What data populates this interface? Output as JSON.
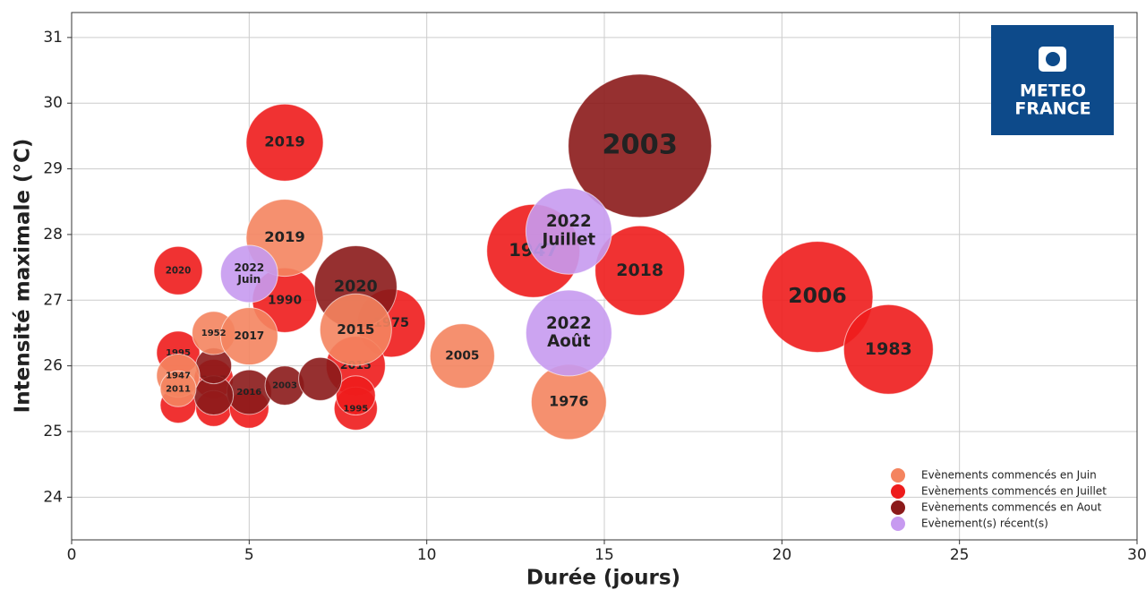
{
  "chart_data": {
    "type": "bubble",
    "xlabel": "Durée (jours)",
    "ylabel": "Intensité maximale (°C)",
    "xlim": [
      0,
      30
    ],
    "xticks": [
      0,
      5,
      10,
      15,
      20,
      25,
      30
    ],
    "ylim": [
      23.35,
      31.38
    ],
    "yticks": [
      24,
      25,
      26,
      27,
      28,
      29,
      30,
      31
    ],
    "grid": true,
    "legend": "lower right",
    "series": [
      {
        "name": "Evènements commencés en Juin",
        "color": "#f4845f",
        "x": [
          6,
          4,
          5,
          8,
          11,
          14,
          3,
          3
        ],
        "y": [
          27.95,
          26.5,
          26.45,
          26.55,
          26.15,
          25.45,
          25.85,
          25.65
        ],
        "sizes": [
          18.5,
          5.8,
          10.2,
          16,
          13,
          17.6,
          5.8,
          4
        ],
        "labels": [
          "2019",
          "1952",
          "2017",
          "2015",
          "2005",
          "1976",
          "1947",
          "2011"
        ]
      },
      {
        "name": "Evènements commencés en Juillet",
        "color": "#ee1c1c",
        "x": [
          6,
          3,
          6,
          9,
          3,
          4,
          8,
          8,
          13,
          16,
          21,
          23,
          3,
          4,
          5,
          8
        ],
        "y": [
          29.4,
          27.45,
          27.0,
          26.65,
          26.2,
          25.8,
          26.0,
          25.35,
          27.75,
          27.45,
          27.05,
          26.25,
          25.4,
          25.35,
          25.35,
          25.55
        ],
        "sizes": [
          18.5,
          7.3,
          13,
          14.4,
          5.8,
          4.8,
          10.9,
          5.8,
          27,
          25,
          38.4,
          25,
          4,
          4,
          4.8,
          4.8
        ],
        "labels": [
          "2019",
          "2020",
          "1990",
          "1975",
          "1995",
          "2017",
          "2015",
          "1995",
          "1947",
          "2018",
          "2006",
          "1983",
          null,
          null,
          null,
          null
        ]
      },
      {
        "name": "Evènements commencés en Aout",
        "color": "#8b1a1a",
        "x": [
          16,
          8,
          5,
          6,
          7,
          4,
          4
        ],
        "y": [
          29.35,
          27.2,
          25.6,
          25.7,
          25.8,
          25.55,
          26.0
        ],
        "sizes": [
          64,
          21.2,
          6.2,
          4.8,
          5.8,
          4.8,
          4
        ],
        "labels": [
          "2003",
          "2020",
          "2016",
          "2003",
          null,
          null,
          null
        ]
      },
      {
        "name": "Evènement(s) récent(s)",
        "color": "#c79af0",
        "x": [
          5,
          14,
          14
        ],
        "y": [
          27.4,
          28.05,
          26.5
        ],
        "sizes": [
          10.2,
          23,
          23
        ],
        "labels": [
          [
            "2022",
            "Juin"
          ],
          [
            "2022",
            "Juillet"
          ],
          [
            "2022",
            "Août"
          ]
        ]
      }
    ]
  },
  "logo": {
    "lines": [
      "METEO",
      "FRANCE"
    ]
  }
}
